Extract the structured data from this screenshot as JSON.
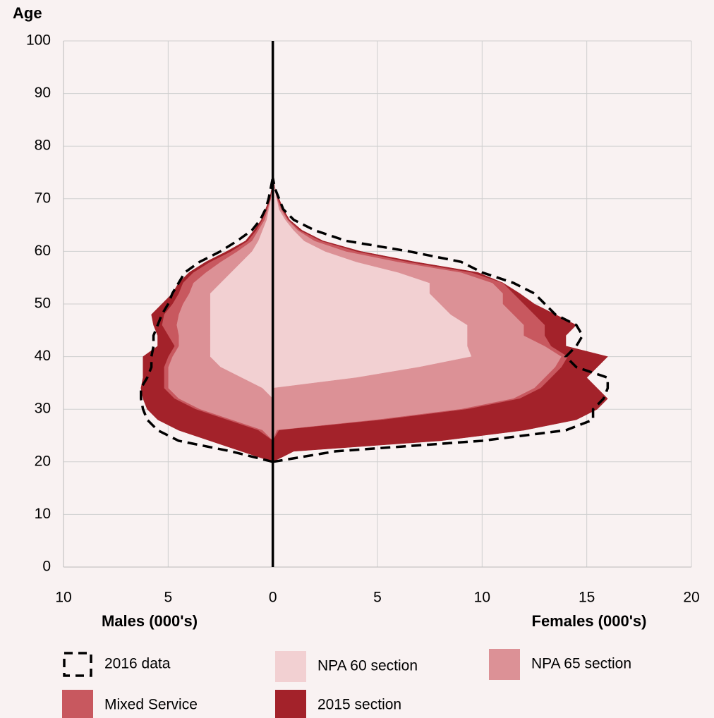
{
  "chart_data": {
    "type": "pyramid",
    "y_label": "Age",
    "x_label_left": "Males (000's)",
    "x_label_right": "Females (000's)",
    "ages": [
      20,
      22,
      24,
      26,
      28,
      30,
      32,
      34,
      36,
      38,
      40,
      42,
      44,
      46,
      48,
      50,
      52,
      54,
      56,
      58,
      60,
      62,
      64,
      66,
      68,
      70,
      72,
      74
    ],
    "xlim": [
      -10,
      20
    ],
    "xticks": [
      {
        "value": -10,
        "label": "10"
      },
      {
        "value": -5,
        "label": "5"
      },
      0,
      5,
      10,
      15,
      20
    ],
    "ylim": [
      0,
      100
    ],
    "yticks": [
      0,
      10,
      20,
      30,
      40,
      50,
      60,
      70,
      80,
      90,
      100
    ],
    "grid": true,
    "series": [
      {
        "name": "NPA 60 section",
        "color": "#f2d0d2",
        "males": [
          0,
          0,
          0,
          0,
          0,
          0,
          0,
          -0.5,
          -1.5,
          -2.5,
          -3,
          -3,
          -3,
          -3,
          -3,
          -3,
          -3,
          -2.5,
          -2,
          -1.5,
          -1,
          -0.7,
          -0.5,
          -0.3,
          -0.2,
          -0.1,
          -0.05,
          0
        ],
        "females": [
          0,
          0,
          0,
          0,
          0,
          0,
          0,
          0,
          4,
          7,
          9.5,
          9.3,
          9.3,
          9.3,
          8.5,
          8,
          7.5,
          7.5,
          6,
          4,
          2.5,
          1.5,
          1,
          0.6,
          0.3,
          0.2,
          0.1,
          0
        ]
      },
      {
        "name": "NPA 65 section",
        "color": "#dc9196",
        "males": [
          0,
          0,
          0,
          -0.5,
          -2,
          -3.5,
          -4.5,
          -4.5,
          -3.5,
          -2.5,
          -1.8,
          -1.5,
          -1.5,
          -1.6,
          -1.5,
          -1.3,
          -1,
          -1.3,
          -1.2,
          -1,
          -0.7,
          -0.3,
          -0.2,
          -0.1,
          -0.05,
          0,
          0,
          0
        ],
        "females": [
          0,
          0,
          0,
          0.2,
          5,
          9,
          11.5,
          12.5,
          9,
          6.5,
          4.3,
          3.7,
          2.7,
          2.7,
          3,
          3,
          3.5,
          3,
          3,
          2,
          1,
          0.5,
          0.2,
          0.1,
          0.1,
          0,
          0,
          0
        ]
      },
      {
        "name": "Mixed Service",
        "color": "#c8585f",
        "males": [
          0,
          0,
          0,
          -0.2,
          -0.2,
          -0.2,
          -0.2,
          -0.2,
          -0.2,
          -0.2,
          -0.2,
          -0.2,
          -0.5,
          -0.7,
          -0.7,
          -0.5,
          -0.5,
          -0.5,
          -0.6,
          -0.5,
          -0.3,
          -0.2,
          -0.1,
          -0.1,
          -0.05,
          -0.02,
          0,
          0
        ],
        "females": [
          0,
          0,
          0,
          0.1,
          0.3,
          0.3,
          0.3,
          0.3,
          0.3,
          0.3,
          0.3,
          0.3,
          1,
          1,
          1,
          1,
          0.5,
          0.5,
          0.5,
          0.5,
          0.5,
          0.3,
          0.1,
          0.05,
          0.05,
          0.05,
          0,
          0
        ]
      },
      {
        "name": "2015 section",
        "color": "#a3222a",
        "males": [
          0,
          -1.5,
          -3,
          -3.8,
          -3.3,
          -2.3,
          -1.5,
          -1.1,
          -1,
          -1,
          -1.2,
          -0.8,
          -0.5,
          -0.4,
          -0.6,
          -0.5,
          -0.3,
          -0.2,
          -0.2,
          -0.2,
          -0.2,
          -0.1,
          -0.1,
          -0.05,
          -0.05,
          -0.03,
          0,
          0
        ],
        "females": [
          0,
          1,
          8,
          11.7,
          9.2,
          6.2,
          4.2,
          2.7,
          1.7,
          1.7,
          1.9,
          0.7,
          1,
          1.5,
          1,
          0.5,
          0.3,
          0,
          0.3,
          0.3,
          0.2,
          0.1,
          0.1,
          0.05,
          0.05,
          0.05,
          0,
          0
        ]
      }
    ],
    "outline": {
      "name": "2016 data",
      "color": "#000000",
      "males": [
        0,
        -2,
        -4.5,
        -5.5,
        -6,
        -6.2,
        -6.3,
        -6.3,
        -6,
        -5.8,
        -5.8,
        -5.7,
        -5.7,
        -5.5,
        -5.3,
        -5,
        -4.8,
        -4.5,
        -4.2,
        -3.5,
        -2.5,
        -1.7,
        -1,
        -0.6,
        -0.35,
        -0.2,
        -0.1,
        0
      ],
      "females": [
        0,
        3,
        10,
        14,
        15.3,
        15.3,
        15.8,
        16,
        16,
        14.5,
        14,
        14.5,
        14.8,
        14.5,
        13.5,
        13,
        12.5,
        11.5,
        10,
        9,
        6.5,
        3.5,
        2,
        1,
        0.5,
        0.3,
        0.1,
        0
      ]
    }
  }
}
